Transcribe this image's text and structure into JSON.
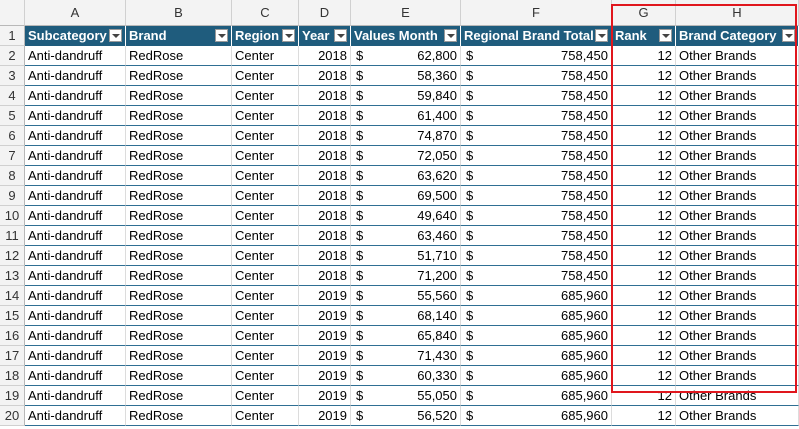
{
  "column_letters": [
    "A",
    "B",
    "C",
    "D",
    "E",
    "F",
    "G",
    "H"
  ],
  "row_numbers": [
    "1",
    "2",
    "3",
    "4",
    "5",
    "6",
    "7",
    "8",
    "9",
    "10",
    "11",
    "12",
    "13",
    "14",
    "15",
    "16",
    "17",
    "18",
    "19",
    "20"
  ],
  "header": [
    "Subcategory",
    "Brand",
    "Region",
    "Year",
    "Values Month",
    "Regional Brand Total",
    "Rank",
    "Brand Category"
  ],
  "rows": [
    [
      "Anti-dandruff",
      "RedRose",
      "Center",
      "2018",
      {
        "currency": "$",
        "amount": "62,800"
      },
      {
        "currency": "$",
        "amount": "758,450"
      },
      "12",
      "Other Brands"
    ],
    [
      "Anti-dandruff",
      "RedRose",
      "Center",
      "2018",
      {
        "currency": "$",
        "amount": "58,360"
      },
      {
        "currency": "$",
        "amount": "758,450"
      },
      "12",
      "Other Brands"
    ],
    [
      "Anti-dandruff",
      "RedRose",
      "Center",
      "2018",
      {
        "currency": "$",
        "amount": "59,840"
      },
      {
        "currency": "$",
        "amount": "758,450"
      },
      "12",
      "Other Brands"
    ],
    [
      "Anti-dandruff",
      "RedRose",
      "Center",
      "2018",
      {
        "currency": "$",
        "amount": "61,400"
      },
      {
        "currency": "$",
        "amount": "758,450"
      },
      "12",
      "Other Brands"
    ],
    [
      "Anti-dandruff",
      "RedRose",
      "Center",
      "2018",
      {
        "currency": "$",
        "amount": "74,870"
      },
      {
        "currency": "$",
        "amount": "758,450"
      },
      "12",
      "Other Brands"
    ],
    [
      "Anti-dandruff",
      "RedRose",
      "Center",
      "2018",
      {
        "currency": "$",
        "amount": "72,050"
      },
      {
        "currency": "$",
        "amount": "758,450"
      },
      "12",
      "Other Brands"
    ],
    [
      "Anti-dandruff",
      "RedRose",
      "Center",
      "2018",
      {
        "currency": "$",
        "amount": "63,620"
      },
      {
        "currency": "$",
        "amount": "758,450"
      },
      "12",
      "Other Brands"
    ],
    [
      "Anti-dandruff",
      "RedRose",
      "Center",
      "2018",
      {
        "currency": "$",
        "amount": "69,500"
      },
      {
        "currency": "$",
        "amount": "758,450"
      },
      "12",
      "Other Brands"
    ],
    [
      "Anti-dandruff",
      "RedRose",
      "Center",
      "2018",
      {
        "currency": "$",
        "amount": "49,640"
      },
      {
        "currency": "$",
        "amount": "758,450"
      },
      "12",
      "Other Brands"
    ],
    [
      "Anti-dandruff",
      "RedRose",
      "Center",
      "2018",
      {
        "currency": "$",
        "amount": "63,460"
      },
      {
        "currency": "$",
        "amount": "758,450"
      },
      "12",
      "Other Brands"
    ],
    [
      "Anti-dandruff",
      "RedRose",
      "Center",
      "2018",
      {
        "currency": "$",
        "amount": "51,710"
      },
      {
        "currency": "$",
        "amount": "758,450"
      },
      "12",
      "Other Brands"
    ],
    [
      "Anti-dandruff",
      "RedRose",
      "Center",
      "2018",
      {
        "currency": "$",
        "amount": "71,200"
      },
      {
        "currency": "$",
        "amount": "758,450"
      },
      "12",
      "Other Brands"
    ],
    [
      "Anti-dandruff",
      "RedRose",
      "Center",
      "2019",
      {
        "currency": "$",
        "amount": "55,560"
      },
      {
        "currency": "$",
        "amount": "685,960"
      },
      "12",
      "Other Brands"
    ],
    [
      "Anti-dandruff",
      "RedRose",
      "Center",
      "2019",
      {
        "currency": "$",
        "amount": "68,140"
      },
      {
        "currency": "$",
        "amount": "685,960"
      },
      "12",
      "Other Brands"
    ],
    [
      "Anti-dandruff",
      "RedRose",
      "Center",
      "2019",
      {
        "currency": "$",
        "amount": "65,840"
      },
      {
        "currency": "$",
        "amount": "685,960"
      },
      "12",
      "Other Brands"
    ],
    [
      "Anti-dandruff",
      "RedRose",
      "Center",
      "2019",
      {
        "currency": "$",
        "amount": "71,430"
      },
      {
        "currency": "$",
        "amount": "685,960"
      },
      "12",
      "Other Brands"
    ],
    [
      "Anti-dandruff",
      "RedRose",
      "Center",
      "2019",
      {
        "currency": "$",
        "amount": "60,330"
      },
      {
        "currency": "$",
        "amount": "685,960"
      },
      "12",
      "Other Brands"
    ],
    [
      "Anti-dandruff",
      "RedRose",
      "Center",
      "2019",
      {
        "currency": "$",
        "amount": "55,050"
      },
      {
        "currency": "$",
        "amount": "685,960"
      },
      "12",
      "Other Brands"
    ],
    [
      "Anti-dandruff",
      "RedRose",
      "Center",
      "2019",
      {
        "currency": "$",
        "amount": "56,520"
      },
      {
        "currency": "$",
        "amount": "685,960"
      },
      "12",
      "Other Brands"
    ]
  ]
}
